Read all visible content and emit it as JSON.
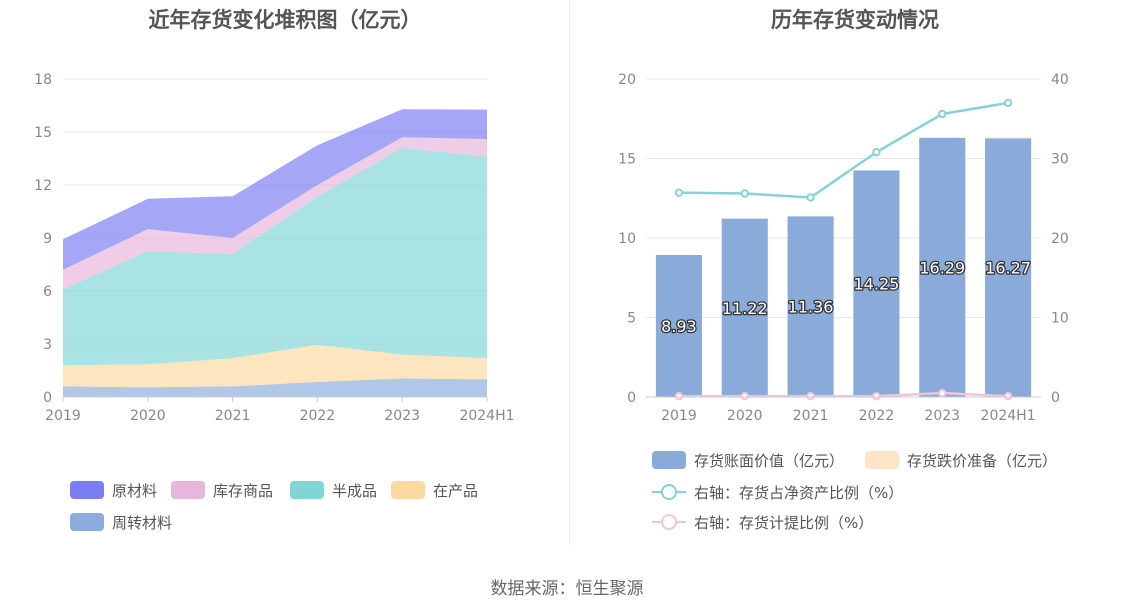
{
  "left_title": "近年存货变化堆积图（亿元）",
  "right_title": "历年存货变动情况",
  "source": "数据来源：恒生聚源",
  "colors": {
    "raw": "#7b7df2",
    "inventory_goods": "#e8b6da",
    "semi": "#82d5d6",
    "wip": "#fcd9a1",
    "revolving": "#8bacdd",
    "bar_book": "#8aaad9",
    "bar_impair": "#fde6c7",
    "line_ratio": "#85d2d8",
    "line_provision": "#f0c4dd"
  },
  "chart_data": [
    {
      "type": "area",
      "stacked": true,
      "title": "近年存货变化堆积图（亿元）",
      "categories": [
        "2019",
        "2020",
        "2021",
        "2022",
        "2023",
        "2024H1"
      ],
      "ylim": [
        0,
        18
      ],
      "yticks": [
        "0",
        "3",
        "6",
        "9",
        "12",
        "15",
        "18"
      ],
      "grid": true,
      "legend_position": "bottom",
      "series": [
        {
          "name": "周转材料",
          "color_key": "revolving",
          "values": [
            0.6,
            0.55,
            0.6,
            0.85,
            1.05,
            1.0
          ]
        },
        {
          "name": "在产品",
          "color_key": "wip",
          "values": [
            1.2,
            1.3,
            1.6,
            2.1,
            1.35,
            1.2
          ]
        },
        {
          "name": "半成品",
          "color_key": "semi",
          "values": [
            4.3,
            6.4,
            5.9,
            8.4,
            11.7,
            11.4
          ]
        },
        {
          "name": "库存商品",
          "color_key": "inventory_goods",
          "values": [
            1.1,
            1.25,
            0.9,
            0.65,
            0.6,
            1.0
          ]
        },
        {
          "name": "原材料",
          "color_key": "raw",
          "values": [
            1.73,
            1.72,
            2.36,
            2.25,
            1.59,
            1.67
          ]
        }
      ],
      "legend_order": [
        "原材料",
        "库存商品",
        "半成品",
        "在产品",
        "周转材料"
      ]
    },
    {
      "type": "bar",
      "title": "历年存货变动情况",
      "categories": [
        "2019",
        "2020",
        "2021",
        "2022",
        "2023",
        "2024H1"
      ],
      "ylim_left": [
        0,
        20
      ],
      "yticks_left": [
        "0",
        "5",
        "10",
        "15",
        "20"
      ],
      "ylim_right": [
        0,
        40
      ],
      "yticks_right": [
        "0",
        "10",
        "20",
        "30",
        "40"
      ],
      "grid": true,
      "legend_position": "bottom",
      "bars": [
        {
          "name": "存货账面价值（亿元）",
          "color_key": "bar_book",
          "values": [
            8.93,
            11.22,
            11.36,
            14.25,
            16.29,
            16.27
          ],
          "labels": [
            "8.93",
            "11.22",
            "11.36",
            "14.25",
            "16.29",
            "16.27"
          ]
        },
        {
          "name": "存货跌价准备（亿元）",
          "color_key": "bar_impair",
          "values": [
            0,
            0,
            0,
            0,
            0.05,
            0.05
          ]
        }
      ],
      "lines": [
        {
          "name": "右轴：存货占净资产比例（%）",
          "color_key": "line_ratio",
          "axis": "right",
          "values": [
            25.7,
            25.6,
            25.1,
            30.8,
            35.6,
            37.0
          ]
        },
        {
          "name": "右轴：存货计提比例（%）",
          "color_key": "line_provision",
          "axis": "right",
          "values": [
            0.1,
            0.1,
            0.1,
            0.1,
            0.5,
            0.1
          ]
        }
      ]
    }
  ]
}
